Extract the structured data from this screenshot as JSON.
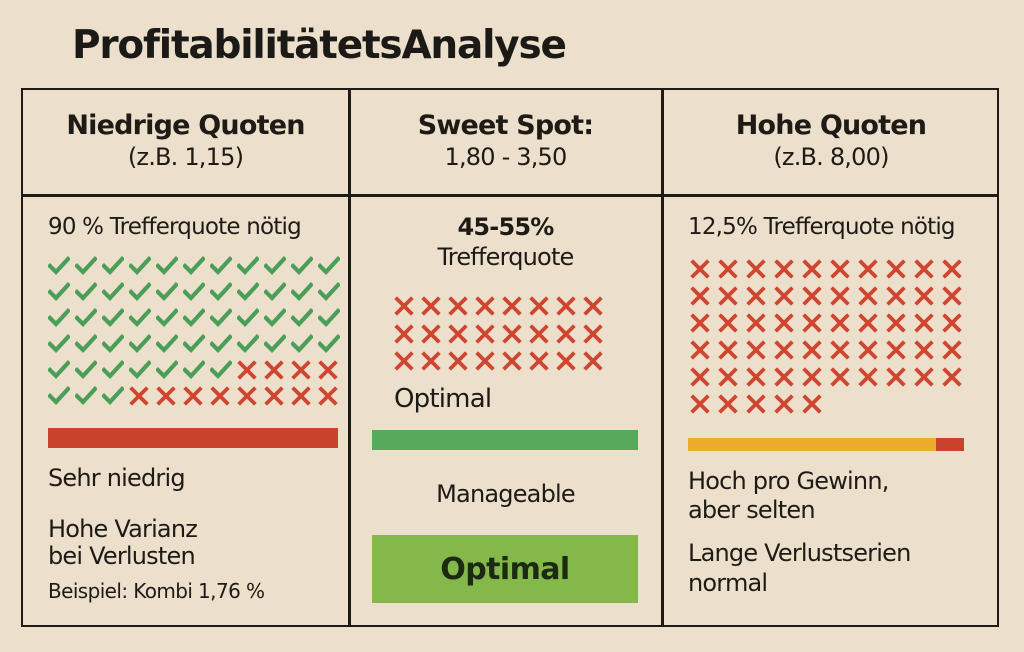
{
  "title": "ProfitabilitätetsAnalyse",
  "colors": {
    "background": "#ecdfcb",
    "border": "#1e1b17",
    "check_green": "#4a9e58",
    "cross_red": "#cf4630",
    "bar_red": "#c9432c",
    "bar_green": "#56a85a",
    "bar_orange": "#ebac2d",
    "optimal_box": "#84b84a"
  },
  "columns": [
    {
      "header_title": "Niedrige Quoten",
      "header_sub": "(z.B. 1,15)",
      "hit_rate": "90 % Trefferquote nötig",
      "grid": {
        "cols": 11,
        "rows": [
          {
            "checks": 11,
            "crosses": 0
          },
          {
            "checks": 11,
            "crosses": 0
          },
          {
            "checks": 11,
            "crosses": 0
          },
          {
            "checks": 11,
            "crosses": 0
          },
          {
            "checks": 7,
            "crosses": 4
          },
          {
            "checks": 3,
            "crosses": 8
          }
        ]
      },
      "bar_label": "Sehr niedrig",
      "note_line1": "Hohe Varianz",
      "note_line2": "bei Verlusten",
      "example": "Beispiel: Kombi 1,76 %"
    },
    {
      "header_title": "Sweet Spot:",
      "header_sub": "1,80 - 3,50",
      "hit_rate_line1": "45-55%",
      "hit_rate_line2": "Trefferquote",
      "grid": {
        "cols": 8,
        "rows": [
          {
            "checks": 0,
            "crosses": 8
          },
          {
            "checks": 0,
            "crosses": 8
          },
          {
            "checks": 0,
            "crosses": 8
          }
        ]
      },
      "grid_label": "Optimal",
      "bar_label": "Manageable",
      "badge": "Optimal"
    },
    {
      "header_title": "Hohe Quoten",
      "header_sub": "(z.B. 8,00)",
      "hit_rate": "12,5% Trefferquote nötig",
      "grid": {
        "cols": 10,
        "rows": [
          {
            "checks": 0,
            "crosses": 10
          },
          {
            "checks": 0,
            "crosses": 10
          },
          {
            "checks": 0,
            "crosses": 10
          },
          {
            "checks": 0,
            "crosses": 10
          },
          {
            "checks": 0,
            "crosses": 10
          },
          {
            "checks": 0,
            "crosses": 5
          }
        ]
      },
      "note1_line1": "Hoch pro Gewinn,",
      "note1_line2": "aber selten",
      "note2_line1": "Lange Verlustserien",
      "note2_line2": "normal"
    }
  ]
}
